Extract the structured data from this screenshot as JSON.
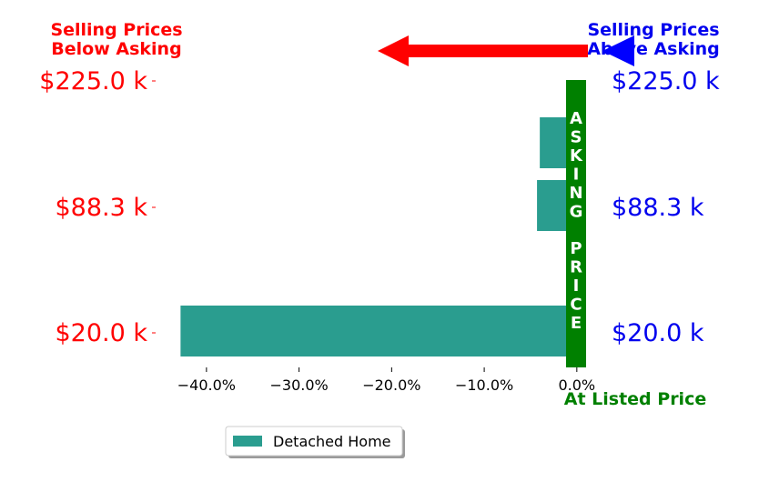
{
  "chart_data": {
    "type": "bar",
    "orientation": "horizontal",
    "categories": [
      "$225.0 k",
      "$88.3 k",
      "$20.0 k"
    ],
    "x_values": [
      -4.0,
      -4.3,
      -42.8
    ],
    "xlabel": "",
    "ylabel": "",
    "xlim": [
      -45,
      1
    ],
    "x_ticks": [
      {
        "value": -40,
        "label": "−40.0%"
      },
      {
        "value": -30,
        "label": "−30.0%"
      },
      {
        "value": -20,
        "label": "−20.0%"
      },
      {
        "value": -10,
        "label": "−10.0%"
      },
      {
        "value": 0,
        "label": "0.0%"
      }
    ],
    "left_tick_labels": [
      "$225.0 k",
      "$88.3 k",
      "$20.0 k"
    ],
    "right_tick_labels": [
      "$225.0 k",
      "$88.3 k",
      "$20.0 k"
    ],
    "series": [
      {
        "name": "Detached Home",
        "color": "#2a9d8f",
        "values": [
          -4.0,
          -4.3,
          -42.8
        ]
      }
    ],
    "legend": {
      "position": "bottom-center",
      "entries": [
        "Detached Home"
      ]
    },
    "grid": false
  },
  "annotations": {
    "below_asking": "Selling Prices\nBelow Asking",
    "above_asking": "Selling Prices\nAbove Asking",
    "asking_price_vertical": "ASKING PRICE",
    "at_listed_price": "At Listed Price"
  },
  "colors": {
    "bar": "#2a9d8f",
    "below": "#ff0000",
    "above": "#0000ee",
    "asking": "#008000",
    "arrow_red": "#ff0000",
    "arrow_blue": "#0000ff"
  }
}
